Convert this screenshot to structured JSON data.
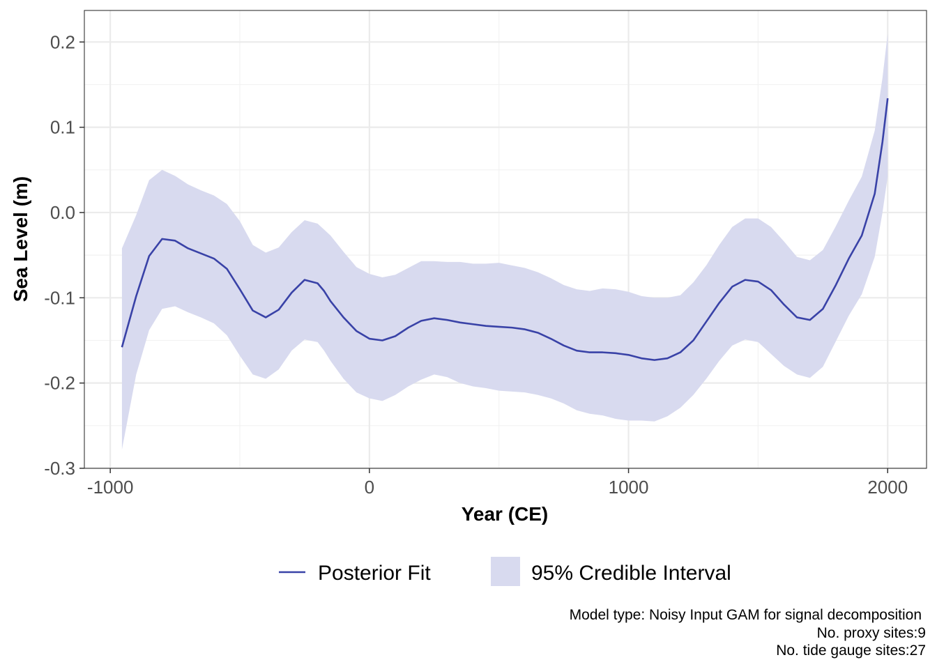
{
  "chart_data": {
    "type": "line",
    "title": "",
    "xlabel": "Year (CE)",
    "ylabel": "Sea Level (m)",
    "xlim": [
      -1100,
      2150
    ],
    "ylim": [
      -0.3,
      0.237
    ],
    "x_ticks": [
      -1000,
      0,
      1000,
      2000
    ],
    "x_tick_labels": [
      "-1000",
      "0",
      "1000",
      "2000"
    ],
    "y_ticks": [
      -0.3,
      -0.2,
      -0.1,
      0.0,
      0.1,
      0.2
    ],
    "y_tick_labels": [
      "-0.3",
      "-0.2",
      "-0.1",
      "0.0",
      "0.1",
      "0.2"
    ],
    "grid": true,
    "legend": {
      "position": "bottom",
      "entries": [
        {
          "label": "Posterior Fit",
          "kind": "line",
          "color": "#3942a7"
        },
        {
          "label": "95% Credible Interval",
          "kind": "fill",
          "color": "#d8daef"
        }
      ]
    },
    "caption_lines": [
      "Model type: Noisy Input GAM for signal decomposition",
      "No. proxy sites:9",
      "No. tide gauge sites:27"
    ],
    "series": [
      {
        "name": "Posterior Fit",
        "x": [
          -955,
          -900,
          -850,
          -800,
          -750,
          -700,
          -650,
          -600,
          -550,
          -500,
          -450,
          -400,
          -350,
          -300,
          -250,
          -200,
          -175,
          -150,
          -100,
          -50,
          0,
          50,
          100,
          150,
          200,
          250,
          300,
          350,
          400,
          450,
          500,
          550,
          600,
          650,
          700,
          750,
          800,
          850,
          900,
          950,
          1000,
          1050,
          1100,
          1150,
          1200,
          1250,
          1300,
          1350,
          1400,
          1450,
          1500,
          1550,
          1600,
          1650,
          1700,
          1750,
          1800,
          1850,
          1900,
          1950,
          1980,
          2000
        ],
        "values": [
          -0.158,
          -0.098,
          -0.051,
          -0.031,
          -0.033,
          -0.042,
          -0.048,
          -0.054,
          -0.066,
          -0.09,
          -0.115,
          -0.123,
          -0.114,
          -0.094,
          -0.079,
          -0.083,
          -0.092,
          -0.104,
          -0.123,
          -0.139,
          -0.148,
          -0.15,
          -0.145,
          -0.135,
          -0.127,
          -0.124,
          -0.126,
          -0.129,
          -0.131,
          -0.133,
          -0.134,
          -0.135,
          -0.137,
          -0.141,
          -0.148,
          -0.156,
          -0.162,
          -0.164,
          -0.164,
          -0.165,
          -0.167,
          -0.171,
          -0.173,
          -0.171,
          -0.164,
          -0.15,
          -0.128,
          -0.106,
          -0.087,
          -0.079,
          -0.081,
          -0.091,
          -0.108,
          -0.123,
          -0.126,
          -0.113,
          -0.085,
          -0.054,
          -0.027,
          0.022,
          0.083,
          0.134
        ],
        "color": "#3942a7"
      },
      {
        "name": "95% Credible Interval",
        "x": [
          -955,
          -900,
          -850,
          -800,
          -750,
          -700,
          -650,
          -600,
          -550,
          -500,
          -450,
          -400,
          -350,
          -300,
          -250,
          -200,
          -175,
          -150,
          -100,
          -50,
          0,
          50,
          100,
          150,
          200,
          250,
          300,
          350,
          400,
          450,
          500,
          550,
          600,
          650,
          700,
          750,
          800,
          850,
          900,
          950,
          1000,
          1050,
          1100,
          1150,
          1200,
          1250,
          1300,
          1350,
          1400,
          1450,
          1500,
          1550,
          1600,
          1650,
          1700,
          1750,
          1800,
          1850,
          1900,
          1950,
          1980,
          2000
        ],
        "lower": [
          -0.278,
          -0.19,
          -0.138,
          -0.113,
          -0.11,
          -0.117,
          -0.123,
          -0.13,
          -0.144,
          -0.168,
          -0.19,
          -0.195,
          -0.184,
          -0.162,
          -0.149,
          -0.152,
          -0.162,
          -0.174,
          -0.195,
          -0.211,
          -0.218,
          -0.221,
          -0.214,
          -0.204,
          -0.196,
          -0.19,
          -0.193,
          -0.2,
          -0.204,
          -0.206,
          -0.209,
          -0.21,
          -0.211,
          -0.214,
          -0.218,
          -0.224,
          -0.232,
          -0.236,
          -0.238,
          -0.242,
          -0.244,
          -0.244,
          -0.245,
          -0.239,
          -0.229,
          -0.214,
          -0.195,
          -0.174,
          -0.156,
          -0.149,
          -0.152,
          -0.166,
          -0.18,
          -0.19,
          -0.194,
          -0.181,
          -0.151,
          -0.121,
          -0.096,
          -0.052,
          0.0,
          0.042
        ],
        "upper": [
          -0.042,
          -0.003,
          0.038,
          0.05,
          0.043,
          0.033,
          0.026,
          0.02,
          0.01,
          -0.01,
          -0.038,
          -0.047,
          -0.041,
          -0.023,
          -0.009,
          -0.013,
          -0.02,
          -0.027,
          -0.046,
          -0.064,
          -0.072,
          -0.076,
          -0.073,
          -0.065,
          -0.057,
          -0.057,
          -0.058,
          -0.058,
          -0.06,
          -0.06,
          -0.059,
          -0.062,
          -0.065,
          -0.07,
          -0.077,
          -0.085,
          -0.09,
          -0.092,
          -0.089,
          -0.09,
          -0.093,
          -0.098,
          -0.1,
          -0.1,
          -0.097,
          -0.082,
          -0.062,
          -0.038,
          -0.017,
          -0.007,
          -0.007,
          -0.017,
          -0.034,
          -0.052,
          -0.056,
          -0.044,
          -0.016,
          0.014,
          0.042,
          0.096,
          0.158,
          0.21
        ],
        "color": "#d8daef"
      }
    ]
  }
}
